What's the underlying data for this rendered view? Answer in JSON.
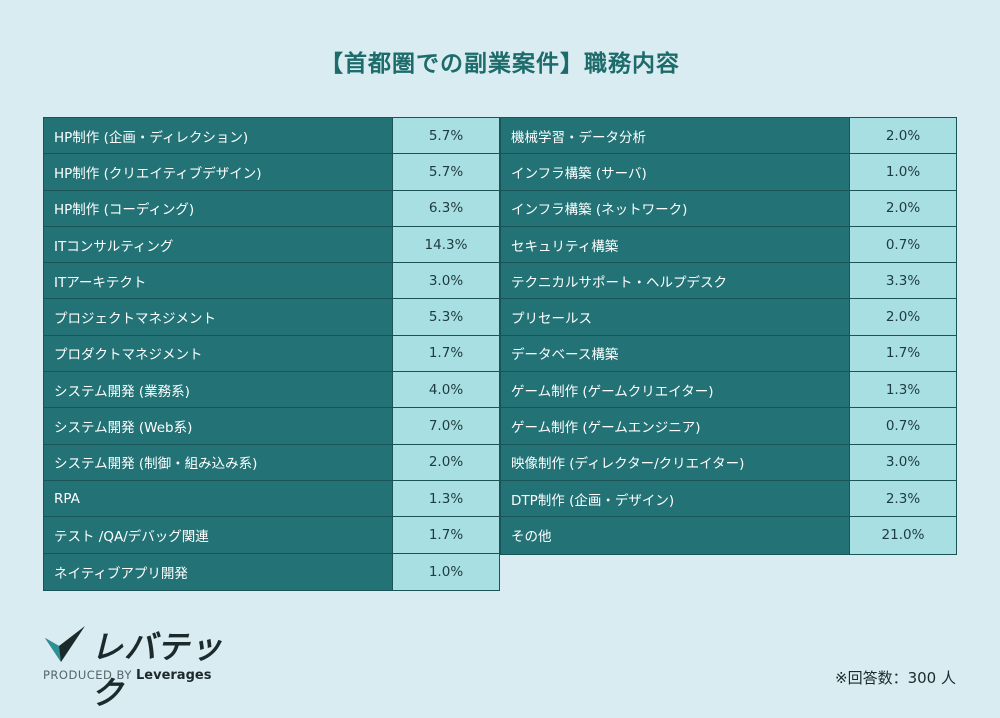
{
  "title": "【首都圏での副業案件】職務内容",
  "left_rows": [
    {
      "label": "HP制作 (企画・ディレクション)",
      "value": "5.7%"
    },
    {
      "label": "HP制作 (クリエイティブデザイン)",
      "value": "5.7%"
    },
    {
      "label": "HP制作 (コーディング)",
      "value": "6.3%"
    },
    {
      "label": "ITコンサルティング",
      "value": "14.3%"
    },
    {
      "label": "ITアーキテクト",
      "value": "3.0%"
    },
    {
      "label": "プロジェクトマネジメント",
      "value": "5.3%"
    },
    {
      "label": "プロダクトマネジメント",
      "value": "1.7%"
    },
    {
      "label": "システム開発 (業務系)",
      "value": "4.0%"
    },
    {
      "label": "システム開発 (Web系)",
      "value": "7.0%"
    },
    {
      "label": "システム開発 (制御・組み込み系)",
      "value": "2.0%"
    },
    {
      "label": "RPA",
      "value": "1.3%"
    },
    {
      "label": "テスト /QA/デバッグ関連",
      "value": "1.7%"
    },
    {
      "label": "ネイティブアプリ開発",
      "value": "1.0%"
    }
  ],
  "right_rows": [
    {
      "label": "機械学習・データ分析",
      "value": "2.0%"
    },
    {
      "label": "インフラ構築 (サーバ)",
      "value": "1.0%"
    },
    {
      "label": "インフラ構築 (ネットワーク)",
      "value": "2.0%"
    },
    {
      "label": "セキュリティ構築",
      "value": "0.7%"
    },
    {
      "label": "テクニカルサポート・ヘルプデスク",
      "value": "3.3%"
    },
    {
      "label": "プリセールス",
      "value": "2.0%"
    },
    {
      "label": "データベース構築",
      "value": "1.7%"
    },
    {
      "label": "ゲーム制作 (ゲームクリエイター)",
      "value": "1.3%"
    },
    {
      "label": "ゲーム制作 (ゲームエンジニア)",
      "value": "0.7%"
    },
    {
      "label": "映像制作 (ディレクター/クリエイター)",
      "value": "3.0%"
    },
    {
      "label": "DTP制作 (企画・デザイン)",
      "value": "2.3%"
    },
    {
      "label": "その他",
      "value": "21.0%"
    }
  ],
  "logo": {
    "text": "レバテック",
    "produced_by": "PRODUCED BY",
    "brand": "Leverages"
  },
  "note": "※回答数：300 人",
  "colors": {
    "background": "#d8ecf1",
    "label_cell": "#237276",
    "value_cell": "#a7dfe2",
    "title": "#1e6b6b"
  }
}
